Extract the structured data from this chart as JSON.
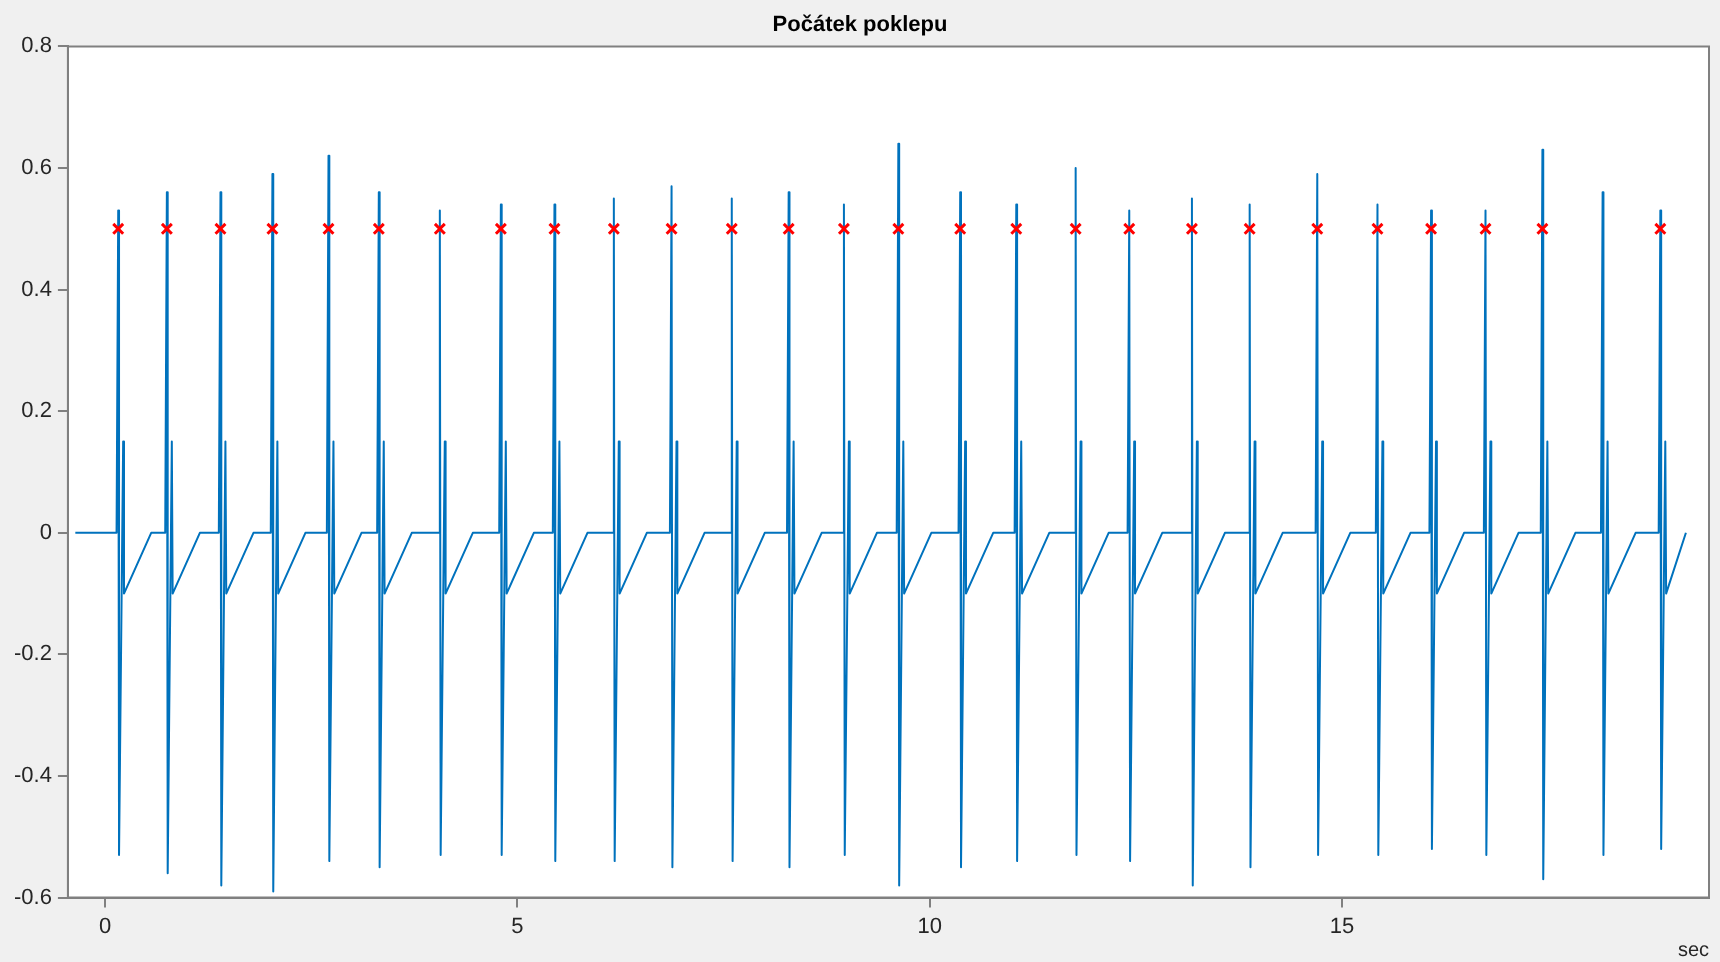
{
  "chart_data": {
    "type": "line",
    "title": "Počátek poklepu",
    "xlabel": "sec",
    "xlim": [
      -0.45,
      19.45
    ],
    "xticks": [
      0,
      5,
      10,
      15
    ],
    "ylim": [
      -0.6,
      0.8
    ],
    "yticks": [
      -0.6,
      -0.4,
      -0.2,
      0,
      0.2,
      0.4,
      0.6,
      0.8
    ],
    "legend": false,
    "series": [
      {
        "type": "line",
        "color": "#0072bd",
        "marker": "none",
        "x": [
          -0.36,
          0.14,
          0.16,
          0.17,
          0.22,
          0.23,
          0.56,
          0.73,
          0.75,
          0.76,
          0.81,
          0.82,
          1.15,
          1.38,
          1.4,
          1.41,
          1.46,
          1.47,
          1.8,
          2.01,
          2.03,
          2.04,
          2.09,
          2.1,
          2.43,
          2.69,
          2.71,
          2.72,
          2.77,
          2.78,
          3.11,
          3.3,
          3.32,
          3.33,
          3.38,
          3.39,
          3.72,
          4.04,
          4.06,
          4.07,
          4.12,
          4.13,
          4.46,
          4.78,
          4.8,
          4.81,
          4.86,
          4.87,
          5.2,
          5.43,
          5.45,
          5.46,
          5.51,
          5.52,
          5.85,
          6.15,
          6.17,
          6.18,
          6.23,
          6.24,
          6.57,
          6.85,
          6.87,
          6.88,
          6.93,
          6.94,
          7.27,
          7.58,
          7.6,
          7.61,
          7.66,
          7.67,
          8,
          8.27,
          8.29,
          8.3,
          8.35,
          8.36,
          8.69,
          8.94,
          8.96,
          8.97,
          9.02,
          9.03,
          9.36,
          9.6,
          9.62,
          9.63,
          9.68,
          9.69,
          10.02,
          10.35,
          10.37,
          10.38,
          10.43,
          10.44,
          10.77,
          11.03,
          11.05,
          11.06,
          11.11,
          11.12,
          11.45,
          11.75,
          11.77,
          11.78,
          11.83,
          11.84,
          12.17,
          12.4,
          12.42,
          12.43,
          12.48,
          12.49,
          12.82,
          13.16,
          13.18,
          13.19,
          13.24,
          13.25,
          13.58,
          13.86,
          13.88,
          13.89,
          13.94,
          13.95,
          14.28,
          14.68,
          14.7,
          14.71,
          14.76,
          14.77,
          15.1,
          15.41,
          15.43,
          15.44,
          15.49,
          15.5,
          15.83,
          16.06,
          16.08,
          16.09,
          16.14,
          16.15,
          16.48,
          16.72,
          16.74,
          16.75,
          16.8,
          16.81,
          17.14,
          17.41,
          17.43,
          17.44,
          17.49,
          17.5,
          17.83,
          18.14,
          18.16,
          18.17,
          18.22,
          18.23,
          18.56,
          18.84,
          18.86,
          18.87,
          18.92,
          18.93,
          19.17
        ],
        "values": [
          0,
          0,
          0.53,
          -0.53,
          0.15,
          -0.1,
          0,
          0,
          0.56,
          -0.56,
          0.15,
          -0.1,
          0,
          0,
          0.56,
          -0.58,
          0.15,
          -0.1,
          0,
          0,
          0.59,
          -0.59,
          0.15,
          -0.1,
          0,
          0,
          0.62,
          -0.54,
          0.15,
          -0.1,
          0,
          0,
          0.56,
          -0.55,
          0.15,
          -0.1,
          0,
          0,
          0.53,
          -0.53,
          0.15,
          -0.1,
          0,
          0,
          0.54,
          -0.53,
          0.15,
          -0.1,
          0,
          0,
          0.54,
          -0.54,
          0.15,
          -0.1,
          0,
          0,
          0.55,
          -0.54,
          0.15,
          -0.1,
          0,
          0,
          0.57,
          -0.55,
          0.15,
          -0.1,
          0,
          0,
          0.55,
          -0.54,
          0.15,
          -0.1,
          0,
          0,
          0.56,
          -0.55,
          0.15,
          -0.1,
          0,
          0,
          0.54,
          -0.53,
          0.15,
          -0.1,
          0,
          0,
          0.64,
          -0.58,
          0.15,
          -0.1,
          0,
          0,
          0.56,
          -0.55,
          0.15,
          -0.1,
          0,
          0,
          0.54,
          -0.54,
          0.15,
          -0.1,
          0,
          0,
          0.6,
          -0.53,
          0.15,
          -0.1,
          0,
          0,
          0.53,
          -0.54,
          0.15,
          -0.1,
          0,
          0,
          0.55,
          -0.58,
          0.15,
          -0.1,
          0,
          0,
          0.54,
          -0.55,
          0.15,
          -0.1,
          0,
          0,
          0.59,
          -0.53,
          0.15,
          -0.1,
          0,
          0,
          0.54,
          -0.53,
          0.15,
          -0.1,
          0,
          0,
          0.53,
          -0.52,
          0.15,
          -0.1,
          0,
          0,
          0.53,
          -0.53,
          0.15,
          -0.1,
          0,
          0,
          0.63,
          -0.57,
          0.15,
          -0.1,
          0,
          0,
          0.56,
          -0.53,
          0.15,
          -0.1,
          0,
          0,
          0.53,
          -0.52,
          0.15,
          -0.1,
          0
        ]
      },
      {
        "type": "scatter",
        "color": "#ff0000",
        "marker": "cross",
        "x": [
          0.16,
          0.75,
          1.4,
          2.03,
          2.71,
          3.32,
          4.06,
          4.8,
          5.45,
          6.17,
          6.87,
          7.6,
          8.29,
          8.96,
          9.62,
          10.37,
          11.05,
          11.77,
          12.42,
          13.18,
          13.88,
          14.7,
          15.43,
          16.08,
          16.74,
          17.43,
          18.86
        ],
        "values": [
          0.5,
          0.5,
          0.5,
          0.5,
          0.5,
          0.5,
          0.5,
          0.5,
          0.5,
          0.5,
          0.5,
          0.5,
          0.5,
          0.5,
          0.5,
          0.5,
          0.5,
          0.5,
          0.5,
          0.5,
          0.5,
          0.5,
          0.5,
          0.5,
          0.5,
          0.5,
          0.5
        ]
      }
    ]
  }
}
